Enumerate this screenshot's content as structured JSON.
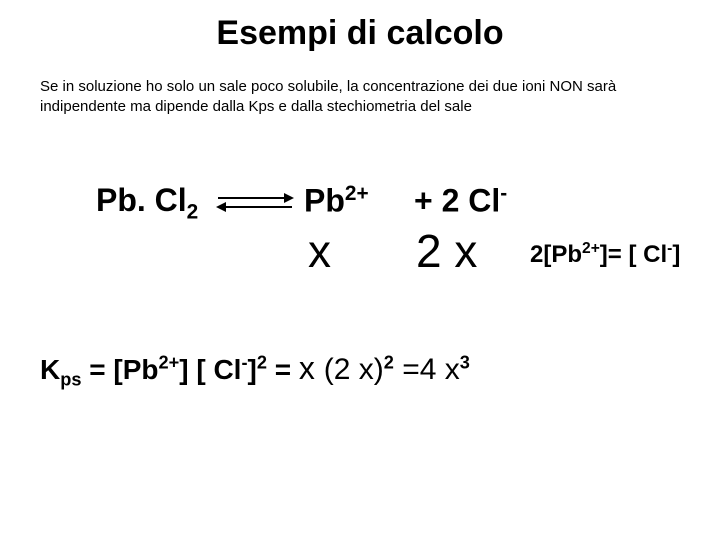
{
  "title": "Esempi di calcolo",
  "paragraph": "Se in soluzione ho solo un sale poco solubile, la concentrazione dei due ioni NON sarà indipendente ma dipende dalla Kps e dalla stechiometria del sale",
  "species": {
    "reactant": "Pb. Cl",
    "reactant_sub": "2",
    "prod1": "Pb",
    "prod1_sup": "2+",
    "plus": " + 2 Cl",
    "prod2_sup": "-"
  },
  "amounts": {
    "x1": "x",
    "x2": "2 x"
  },
  "relation": {
    "lhs": "2[Pb",
    "lhs_sup": "2+",
    "mid": "]= [ Cl",
    "rhs_sup": "-",
    "end": "]"
  },
  "kps": {
    "k": "K",
    "ksub": "ps",
    "eq1": " = [Pb",
    "s1": "2+",
    "eq2": "] [ Cl",
    "s2": "-",
    "eq3": "]",
    "s3": "2",
    "eq4": " = ",
    "x": "x ",
    "p1": "(2 x)",
    "p1s": "2",
    "eq5": " =4 x",
    "p2s": "3"
  }
}
